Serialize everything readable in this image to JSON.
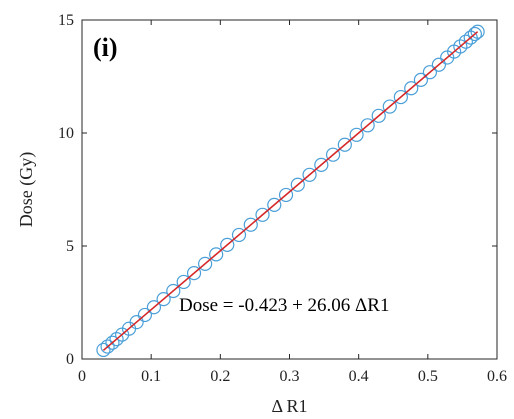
{
  "chart_data": {
    "type": "scatter",
    "panel_label": "(i)",
    "xlabel": "Δ R1",
    "ylabel": "Dose (Gy)",
    "xlim": [
      0,
      0.6
    ],
    "ylim": [
      0,
      15
    ],
    "x_ticks": [
      "0",
      "0.1",
      "0.2",
      "0.3",
      "0.4",
      "0.5",
      "0.6"
    ],
    "y_ticks": [
      "0",
      "5",
      "10",
      "15"
    ],
    "grid": false,
    "annotation": "Dose = -0.423 + 26.06 ΔR1",
    "marker_color": "#4a9fd8",
    "fit_color": "#d62728",
    "fit": {
      "intercept": -0.423,
      "slope": 26.06,
      "x_range": [
        0.031,
        0.572
      ]
    },
    "series": [
      {
        "marker": "circle",
        "x": [
          0.031,
          0.037,
          0.044,
          0.05,
          0.058,
          0.068,
          0.079,
          0.091,
          0.104,
          0.118,
          0.132,
          0.147,
          0.162,
          0.178,
          0.194,
          0.21,
          0.227,
          0.244,
          0.261,
          0.278,
          0.295,
          0.312,
          0.329,
          0.346,
          0.363,
          0.38,
          0.397,
          0.413,
          0.429,
          0.445,
          0.461,
          0.476,
          0.49,
          0.503,
          0.516,
          0.528,
          0.538,
          0.547,
          0.555,
          0.562,
          0.568,
          0.572
        ],
        "y": [
          0.4,
          0.55,
          0.72,
          0.88,
          1.08,
          1.34,
          1.63,
          1.95,
          2.29,
          2.65,
          3.01,
          3.41,
          3.8,
          4.21,
          4.63,
          5.05,
          5.49,
          5.94,
          6.38,
          6.82,
          7.26,
          7.71,
          8.15,
          8.59,
          9.04,
          9.48,
          9.92,
          10.34,
          10.76,
          11.17,
          11.59,
          11.98,
          12.35,
          12.69,
          13.02,
          13.34,
          13.6,
          13.83,
          14.04,
          14.22,
          14.38,
          14.48
        ]
      }
    ]
  }
}
